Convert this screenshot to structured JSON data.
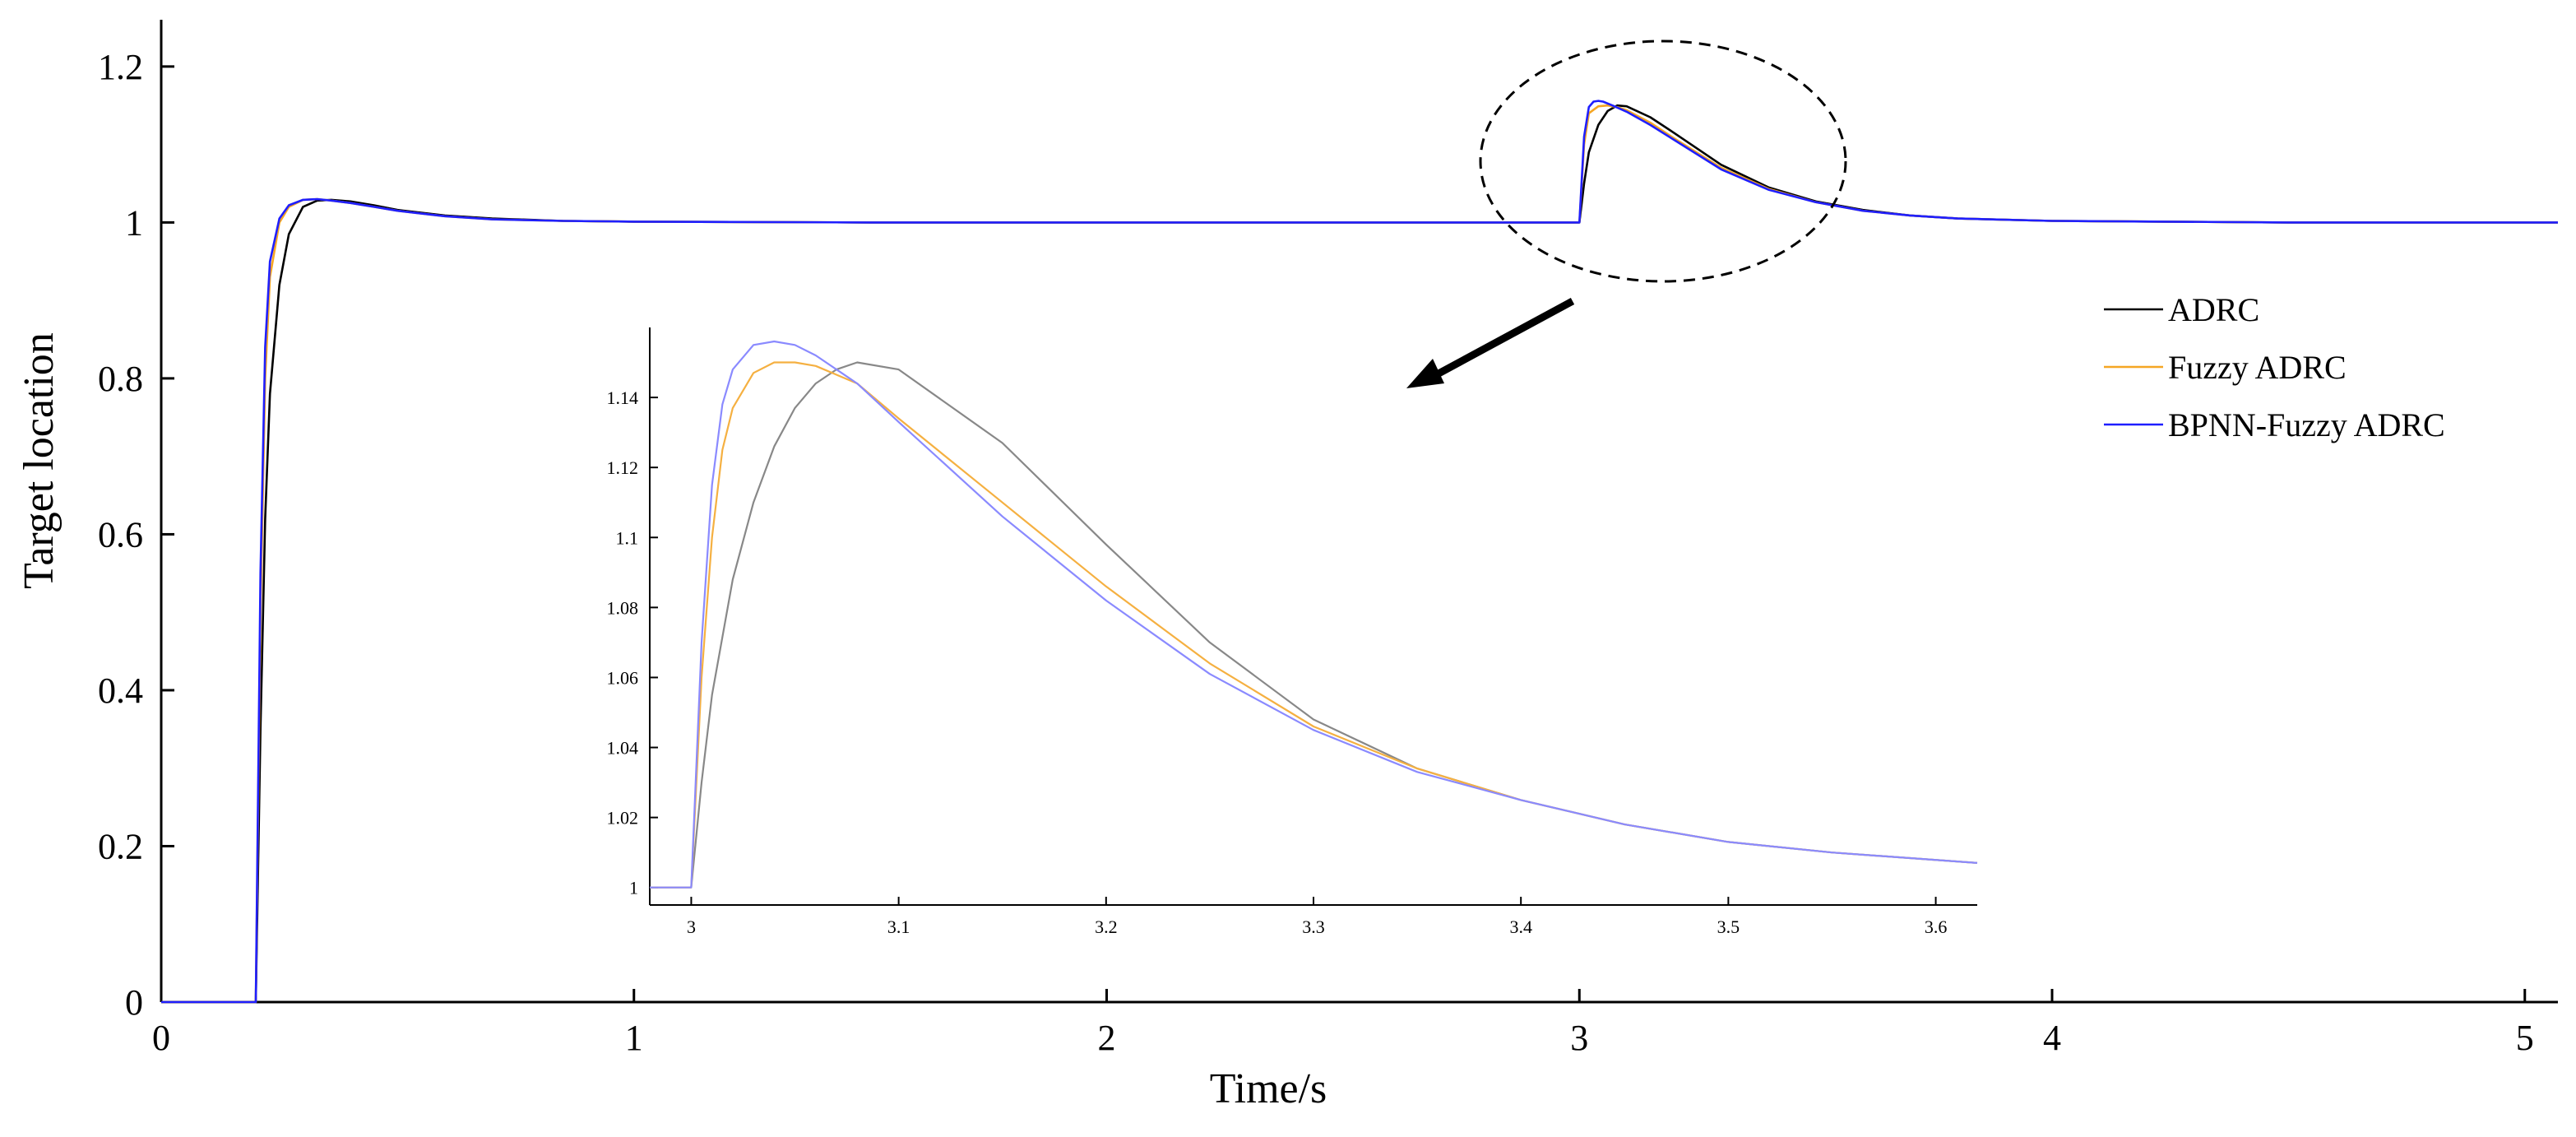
{
  "chart_data": [
    {
      "type": "line",
      "xlabel": "Time/s",
      "ylabel": "Target location",
      "xlim": [
        0,
        5.07
      ],
      "ylim": [
        0,
        1.26
      ],
      "x_ticks": [
        0,
        1,
        2,
        3,
        4,
        5
      ],
      "y_ticks": [
        0,
        0.2,
        0.4,
        0.6,
        0.8,
        1,
        1.2
      ],
      "x_tick_labels": [
        "0",
        "1",
        "2",
        "3",
        "4",
        "5"
      ],
      "y_tick_labels": [
        "0",
        "0.2",
        "0.4",
        "0.6",
        "0.8",
        "1",
        "1.2"
      ],
      "grid": false,
      "legend_position": "right",
      "series": [
        {
          "name": "ADRC",
          "color": "#000000",
          "x": [
            0,
            0.2,
            0.21,
            0.22,
            0.23,
            0.25,
            0.27,
            0.3,
            0.33,
            0.36,
            0.4,
            0.45,
            0.5,
            0.6,
            0.7,
            0.85,
            1.0,
            1.5,
            2.0,
            2.5,
            2.99,
            3.0,
            3.01,
            3.02,
            3.04,
            3.06,
            3.08,
            3.1,
            3.15,
            3.2,
            3.3,
            3.4,
            3.5,
            3.6,
            3.7,
            3.8,
            4.0,
            4.5,
            5.07
          ],
          "y": [
            0,
            0,
            0.35,
            0.62,
            0.78,
            0.92,
            0.985,
            1.02,
            1.028,
            1.029,
            1.027,
            1.022,
            1.016,
            1.009,
            1.005,
            1.002,
            1.001,
            1.0,
            1.0,
            1.0,
            1.0,
            1.0,
            1.05,
            1.09,
            1.125,
            1.143,
            1.15,
            1.149,
            1.135,
            1.115,
            1.074,
            1.045,
            1.027,
            1.016,
            1.009,
            1.005,
            1.002,
            1.0,
            1.0
          ]
        },
        {
          "name": "Fuzzy ADRC",
          "color": "#f5a623",
          "x": [
            0,
            0.2,
            0.21,
            0.22,
            0.23,
            0.25,
            0.27,
            0.3,
            0.33,
            0.36,
            0.4,
            0.45,
            0.5,
            0.6,
            0.7,
            0.85,
            1.0,
            1.5,
            2.0,
            2.5,
            2.99,
            3.0,
            3.01,
            3.02,
            3.04,
            3.06,
            3.08,
            3.1,
            3.15,
            3.2,
            3.3,
            3.4,
            3.5,
            3.6,
            3.7,
            3.8,
            4.0,
            4.5,
            5.07
          ],
          "y": [
            0,
            0,
            0.5,
            0.8,
            0.93,
            1.0,
            1.02,
            1.029,
            1.03,
            1.028,
            1.025,
            1.02,
            1.015,
            1.008,
            1.004,
            1.002,
            1.001,
            1.0,
            1.0,
            1.0,
            1.0,
            1.0,
            1.1,
            1.14,
            1.149,
            1.15,
            1.148,
            1.144,
            1.128,
            1.108,
            1.07,
            1.043,
            1.026,
            1.015,
            1.009,
            1.005,
            1.002,
            1.0,
            1.0
          ]
        },
        {
          "name": "BPNN-Fuzzy ADRC",
          "color": "#1f1fff",
          "x": [
            0,
            0.2,
            0.21,
            0.22,
            0.23,
            0.25,
            0.27,
            0.3,
            0.33,
            0.36,
            0.4,
            0.45,
            0.5,
            0.6,
            0.7,
            0.85,
            1.0,
            1.5,
            2.0,
            2.5,
            2.99,
            3.0,
            3.01,
            3.02,
            3.03,
            3.04,
            3.05,
            3.07,
            3.1,
            3.15,
            3.2,
            3.3,
            3.4,
            3.5,
            3.6,
            3.7,
            3.8,
            4.0,
            4.5,
            5.07
          ],
          "y": [
            0,
            0,
            0.55,
            0.84,
            0.95,
            1.005,
            1.022,
            1.029,
            1.03,
            1.028,
            1.025,
            1.02,
            1.015,
            1.008,
            1.004,
            1.002,
            1.001,
            1.0,
            1.0,
            1.0,
            1.0,
            1.0,
            1.11,
            1.148,
            1.155,
            1.156,
            1.155,
            1.15,
            1.142,
            1.125,
            1.106,
            1.068,
            1.042,
            1.026,
            1.015,
            1.009,
            1.005,
            1.002,
            1.0,
            1.0
          ]
        }
      ]
    },
    {
      "type": "line",
      "xlim": [
        2.98,
        3.62
      ],
      "ylim": [
        0.995,
        1.16
      ],
      "x_ticks": [
        3,
        3.1,
        3.2,
        3.3,
        3.4,
        3.5,
        3.6
      ],
      "y_ticks": [
        1,
        1.02,
        1.04,
        1.06,
        1.08,
        1.1,
        1.12,
        1.14
      ],
      "x_tick_labels": [
        "3",
        "3.1",
        "3.2",
        "3.3",
        "3.4",
        "3.5",
        "3.6"
      ],
      "y_tick_labels": [
        "1",
        "1.02",
        "1.04",
        "1.06",
        "1.08",
        "1.1",
        "1.12",
        "1.14"
      ],
      "grid": false,
      "series": [
        {
          "name": "ADRC",
          "color": "#888888",
          "x": [
            2.98,
            3.0,
            3.005,
            3.01,
            3.02,
            3.03,
            3.04,
            3.05,
            3.06,
            3.07,
            3.08,
            3.1,
            3.15,
            3.2,
            3.25,
            3.3,
            3.35,
            3.4,
            3.45,
            3.5,
            3.55,
            3.62
          ],
          "y": [
            1.0,
            1.0,
            1.03,
            1.055,
            1.088,
            1.11,
            1.126,
            1.137,
            1.144,
            1.148,
            1.15,
            1.148,
            1.127,
            1.098,
            1.07,
            1.048,
            1.034,
            1.025,
            1.018,
            1.013,
            1.01,
            1.007
          ]
        },
        {
          "name": "Fuzzy ADRC",
          "color": "#f5b041",
          "x": [
            2.98,
            3.0,
            3.005,
            3.01,
            3.015,
            3.02,
            3.03,
            3.04,
            3.05,
            3.06,
            3.08,
            3.1,
            3.15,
            3.2,
            3.25,
            3.3,
            3.35,
            3.4,
            3.45,
            3.5,
            3.55,
            3.62
          ],
          "y": [
            1.0,
            1.0,
            1.06,
            1.1,
            1.125,
            1.137,
            1.147,
            1.15,
            1.15,
            1.149,
            1.144,
            1.134,
            1.11,
            1.086,
            1.064,
            1.046,
            1.034,
            1.025,
            1.018,
            1.013,
            1.01,
            1.007
          ]
        },
        {
          "name": "BPNN-Fuzzy ADRC",
          "color": "#8a8aff",
          "x": [
            2.98,
            3.0,
            3.005,
            3.01,
            3.015,
            3.02,
            3.03,
            3.04,
            3.05,
            3.06,
            3.08,
            3.1,
            3.15,
            3.2,
            3.25,
            3.3,
            3.35,
            3.4,
            3.45,
            3.5,
            3.55,
            3.62
          ],
          "y": [
            1.0,
            1.0,
            1.07,
            1.115,
            1.138,
            1.148,
            1.155,
            1.156,
            1.155,
            1.152,
            1.144,
            1.133,
            1.106,
            1.082,
            1.061,
            1.045,
            1.033,
            1.025,
            1.018,
            1.013,
            1.01,
            1.007
          ]
        }
      ]
    }
  ]
}
